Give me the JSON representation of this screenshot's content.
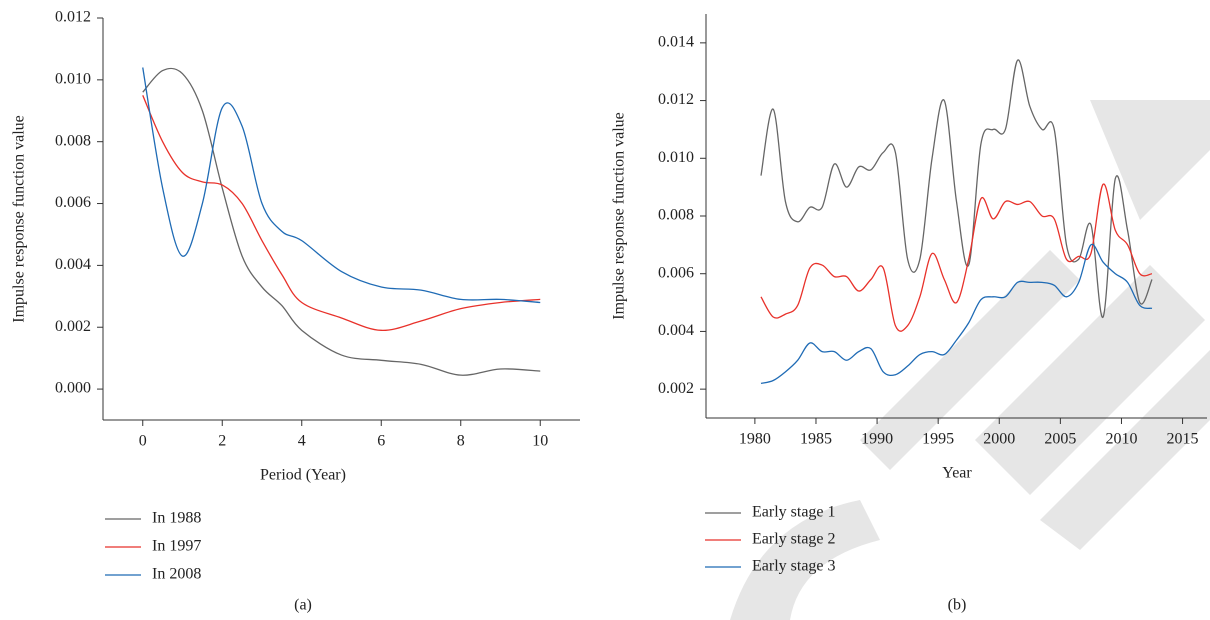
{
  "chart_data": [
    {
      "type": "line",
      "caption": "(a)",
      "x_label": "Period (Year)",
      "y_label": "Impulse response function value",
      "x": [
        0,
        0.5,
        1,
        1.5,
        2,
        2.5,
        3,
        3.5,
        4,
        5,
        6,
        7,
        8,
        9,
        10
      ],
      "series": [
        {
          "name": "In 1988",
          "color": "#666666",
          "values": [
            0.0096,
            0.0103,
            0.0102,
            0.009,
            0.0065,
            0.0043,
            0.0033,
            0.0027,
            0.0019,
            0.0011,
            0.00093,
            0.0008,
            0.00045,
            0.00065,
            0.00058
          ]
        },
        {
          "name": "In 1997",
          "color": "#e8312a",
          "values": [
            0.0095,
            0.008,
            0.007,
            0.0067,
            0.0066,
            0.006,
            0.0048,
            0.0037,
            0.0028,
            0.0023,
            0.0019,
            0.0022,
            0.0026,
            0.0028,
            0.0029
          ]
        },
        {
          "name": "In 2008",
          "color": "#1f6bb5",
          "values": [
            0.0104,
            0.0065,
            0.0043,
            0.006,
            0.0091,
            0.0085,
            0.006,
            0.0051,
            0.0048,
            0.0038,
            0.0033,
            0.0032,
            0.0029,
            0.0029,
            0.0028
          ]
        }
      ],
      "xlim": [
        -1,
        11
      ],
      "xticks": [
        0,
        2,
        4,
        6,
        8,
        10
      ],
      "ylim": [
        -0.001,
        0.012
      ],
      "yticks": [
        {
          "value": 0,
          "label": "0.000"
        },
        0.002,
        0.004,
        0.006,
        0.008,
        {
          "value": 0.01,
          "label": "0.010"
        },
        0.012
      ],
      "legend": "below",
      "grid": false
    },
    {
      "type": "line",
      "caption": "(b)",
      "x_label": "Year",
      "y_label": "Impulse response function value",
      "x": [
        1980.5,
        1981.5,
        1982.5,
        1983.5,
        1984.5,
        1985.5,
        1986.5,
        1987.5,
        1988.5,
        1989.5,
        1990.5,
        1991.5,
        1992.5,
        1993.5,
        1994.5,
        1995.5,
        1996.5,
        1997.5,
        1998.5,
        1999.5,
        2000.5,
        2001.5,
        2002.5,
        2003.5,
        2004.5,
        2005.5,
        2006.5,
        2007.5,
        2008.5,
        2009.5,
        2010.5,
        2011.5,
        2012.5
      ],
      "series": [
        {
          "name": "Early stage 1",
          "color": "#666666",
          "values": [
            0.0094,
            0.0117,
            0.0085,
            0.0078,
            0.0083,
            0.0083,
            0.0098,
            0.009,
            0.0097,
            0.0096,
            0.0102,
            0.0102,
            0.0065,
            0.0065,
            0.01,
            0.012,
            0.0085,
            0.0063,
            0.0105,
            0.011,
            0.011,
            0.0134,
            0.0118,
            0.011,
            0.011,
            0.007,
            0.0065,
            0.0077,
            0.0045,
            0.0093,
            0.0075,
            0.005,
            0.0058
          ]
        },
        {
          "name": "Early stage 2",
          "color": "#e8312a",
          "values": [
            0.0052,
            0.0045,
            0.0046,
            0.0049,
            0.0062,
            0.0063,
            0.0059,
            0.0059,
            0.0054,
            0.0058,
            0.0062,
            0.0042,
            0.0042,
            0.0052,
            0.0067,
            0.0058,
            0.005,
            0.0065,
            0.0086,
            0.0079,
            0.0085,
            0.0084,
            0.0085,
            0.008,
            0.0079,
            0.0065,
            0.0066,
            0.0067,
            0.0091,
            0.0075,
            0.007,
            0.006,
            0.006
          ]
        },
        {
          "name": "Early stage 3",
          "color": "#1f6bb5",
          "values": [
            0.0022,
            0.0023,
            0.0026,
            0.003,
            0.0036,
            0.0033,
            0.0033,
            0.003,
            0.0033,
            0.0034,
            0.0026,
            0.0025,
            0.0028,
            0.0032,
            0.0033,
            0.0032,
            0.0037,
            0.0043,
            0.0051,
            0.0052,
            0.0052,
            0.0057,
            0.0057,
            0.0057,
            0.0056,
            0.0052,
            0.0057,
            0.007,
            0.0064,
            0.006,
            0.0057,
            0.0049,
            0.0048
          ]
        }
      ],
      "xlim": [
        1976,
        2017
      ],
      "xticks": [
        1980,
        1985,
        1990,
        1995,
        2000,
        2005,
        2010,
        2015
      ],
      "ylim": [
        0.001,
        0.015
      ],
      "yticks": [
        0.002,
        0.004,
        0.006,
        0.008,
        {
          "value": 0.01,
          "label": "0.010"
        },
        0.012,
        0.014
      ],
      "legend": "below",
      "grid": false
    }
  ]
}
